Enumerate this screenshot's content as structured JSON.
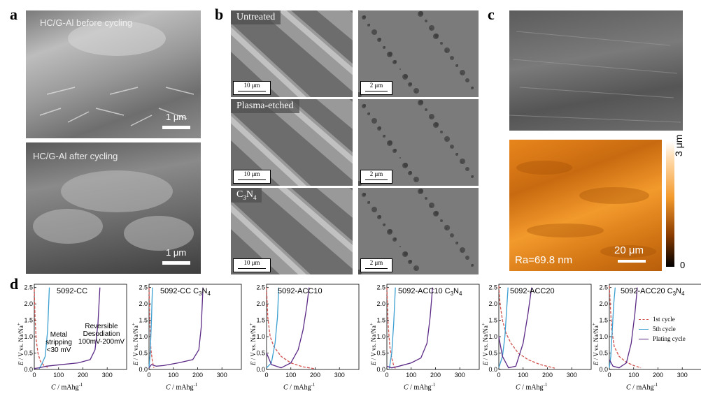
{
  "panel_labels": {
    "a": "a",
    "b": "b",
    "c": "c",
    "d": "d"
  },
  "panel_a": {
    "top_caption": "HC/G-Al before cycling",
    "top_scale": "1 μm",
    "bottom_caption": "HC/G-Al after cycling",
    "bottom_scale": "1 μm"
  },
  "panel_b": {
    "rows": [
      {
        "tag": "Untreated",
        "scale_left": "10 μm",
        "scale_right": "2 μm"
      },
      {
        "tag": "Plasma-etched",
        "scale_left": "10 μm",
        "scale_right": "2 μm"
      },
      {
        "tag": "C3N4",
        "scale_left": "10 μm",
        "scale_right": "2 μm"
      }
    ]
  },
  "panel_c": {
    "colorbar_top": "3 μm",
    "colorbar_bottom": "0",
    "roughness": "Ra=69.8 nm",
    "scale": "20 μm"
  },
  "panel_d": {
    "ylabel": "E / V vs. Na/Na⁺",
    "xlabel": "C / mAhg⁻¹",
    "annotations": {
      "metal_stripping": "Metal stripping <30 mV",
      "reversible": "Reversible Desodiation 100mV-200mV"
    },
    "legend": [
      {
        "label": "1st cycle",
        "color": "#d0534f",
        "dash": true
      },
      {
        "label": "5th cycle",
        "color": "#3b9fd1",
        "dash": false
      },
      {
        "label": "Plating cycle",
        "color": "#5b2a86",
        "dash": false
      }
    ]
  },
  "chart_data": [
    {
      "type": "line",
      "title": "5092-CC",
      "xlim": [
        0,
        380
      ],
      "ylim": [
        0,
        2.6
      ],
      "xticks": [
        0,
        100,
        200,
        300
      ],
      "yticks": [
        0.0,
        0.5,
        1.0,
        1.5,
        2.0,
        2.5
      ],
      "series": [
        {
          "name": "1st cycle",
          "x": [
            0,
            3,
            8,
            15,
            25,
            40,
            60
          ],
          "y": [
            2.45,
            1.6,
            0.9,
            0.5,
            0.25,
            0.12,
            0.05
          ]
        },
        {
          "name": "5th cycle",
          "x": [
            20,
            30,
            45,
            55,
            62
          ],
          "y": [
            0.02,
            0.15,
            0.4,
            1.2,
            2.5
          ]
        },
        {
          "name": "Plating cycle",
          "x": [
            0,
            20,
            50,
            100,
            180,
            230,
            250,
            262,
            270
          ],
          "y": [
            0.03,
            0.05,
            0.1,
            0.14,
            0.2,
            0.3,
            0.6,
            1.4,
            2.5
          ]
        }
      ]
    },
    {
      "type": "line",
      "title": "5092-CC C3N4",
      "xlim": [
        0,
        380
      ],
      "ylim": [
        0,
        2.6
      ],
      "xticks": [
        0,
        100,
        200,
        300
      ],
      "yticks": [
        0.0,
        0.5,
        1.0,
        1.5,
        2.0,
        2.5
      ],
      "series": [
        {
          "name": "1st cycle",
          "x": [
            0,
            3,
            8,
            14,
            20
          ],
          "y": [
            2.5,
            1.5,
            0.6,
            0.25,
            0.05
          ]
        },
        {
          "name": "5th cycle",
          "x": [
            0,
            5,
            10,
            14
          ],
          "y": [
            0.05,
            0.5,
            1.5,
            2.5
          ]
        },
        {
          "name": "Plating cycle",
          "x": [
            0,
            10,
            30,
            60,
            120,
            180,
            205,
            215,
            222
          ],
          "y": [
            0.05,
            0.15,
            0.1,
            0.12,
            0.2,
            0.3,
            0.6,
            1.3,
            2.5
          ]
        }
      ]
    },
    {
      "type": "line",
      "title": "5092-ACC10",
      "xlim": [
        0,
        380
      ],
      "ylim": [
        0,
        2.6
      ],
      "xticks": [
        0,
        100,
        200,
        300
      ],
      "yticks": [
        0.0,
        0.5,
        1.0,
        1.5,
        2.0,
        2.5
      ],
      "series": [
        {
          "name": "1st cycle",
          "x": [
            0,
            5,
            15,
            30,
            60,
            100,
            150,
            200
          ],
          "y": [
            2.5,
            1.6,
            1.0,
            0.7,
            0.4,
            0.2,
            0.08,
            0.02
          ]
        },
        {
          "name": "5th cycle",
          "x": [
            0,
            20,
            35,
            45,
            50
          ],
          "y": [
            0.05,
            0.2,
            0.8,
            1.6,
            2.5
          ]
        },
        {
          "name": "Plating cycle",
          "x": [
            0,
            20,
            60,
            100,
            130,
            150,
            165,
            175
          ],
          "y": [
            0.5,
            0.15,
            0.05,
            0.2,
            0.6,
            1.2,
            1.9,
            2.5
          ]
        }
      ]
    },
    {
      "type": "line",
      "title": "5092-ACC10 C3N4",
      "xlim": [
        0,
        380
      ],
      "ylim": [
        0,
        2.6
      ],
      "xticks": [
        0,
        100,
        200,
        300
      ],
      "yticks": [
        0.0,
        0.5,
        1.0,
        1.5,
        2.0,
        2.5
      ],
      "series": [
        {
          "name": "1st cycle",
          "x": [
            0,
            5,
            12,
            20,
            28,
            35
          ],
          "y": [
            2.5,
            1.4,
            0.7,
            0.35,
            0.12,
            0.03
          ]
        },
        {
          "name": "5th cycle",
          "x": [
            10,
            20,
            28,
            35
          ],
          "y": [
            0.03,
            0.5,
            1.4,
            2.5
          ]
        },
        {
          "name": "Plating cycle",
          "x": [
            0,
            20,
            50,
            100,
            140,
            165,
            178,
            188
          ],
          "y": [
            0.1,
            0.05,
            0.1,
            0.2,
            0.35,
            0.8,
            1.6,
            2.5
          ]
        }
      ]
    },
    {
      "type": "line",
      "title": "5092-ACC20",
      "xlim": [
        0,
        380
      ],
      "ylim": [
        0,
        2.6
      ],
      "xticks": [
        0,
        100,
        200,
        300
      ],
      "yticks": [
        0.0,
        0.5,
        1.0,
        1.5,
        2.0,
        2.5
      ],
      "series": [
        {
          "name": "1st cycle",
          "x": [
            0,
            5,
            15,
            30,
            50,
            80,
            120,
            170,
            230
          ],
          "y": [
            2.55,
            2.0,
            1.5,
            1.1,
            0.8,
            0.5,
            0.3,
            0.15,
            0.04
          ]
        },
        {
          "name": "5th cycle",
          "x": [
            0,
            15,
            25,
            32,
            38
          ],
          "y": [
            0.05,
            0.4,
            1.0,
            1.8,
            2.5
          ]
        },
        {
          "name": "Plating cycle",
          "x": [
            0,
            15,
            40,
            70,
            100,
            120,
            135
          ],
          "y": [
            1.0,
            0.4,
            0.05,
            0.1,
            0.8,
            1.7,
            2.5
          ]
        }
      ]
    },
    {
      "type": "line",
      "title": "5092-ACC20 C3N4",
      "xlim": [
        0,
        380
      ],
      "ylim": [
        0,
        2.6
      ],
      "xticks": [
        0,
        100,
        200,
        300
      ],
      "yticks": [
        0.0,
        0.5,
        1.0,
        1.5,
        2.0,
        2.5
      ],
      "series": [
        {
          "name": "1st cycle",
          "x": [
            0,
            5,
            10,
            20,
            40,
            70,
            100,
            130
          ],
          "y": [
            2.55,
            1.8,
            1.2,
            0.7,
            0.4,
            0.22,
            0.12,
            0.05
          ]
        },
        {
          "name": "5th cycle",
          "x": [
            0,
            6,
            12,
            18,
            24
          ],
          "y": [
            0.05,
            0.4,
            1.2,
            2.0,
            2.5
          ]
        },
        {
          "name": "Plating cycle",
          "x": [
            0,
            15,
            40,
            70,
            90,
            105,
            115
          ],
          "y": [
            0.3,
            0.1,
            0.05,
            0.2,
            0.8,
            1.7,
            2.5
          ]
        }
      ]
    }
  ]
}
